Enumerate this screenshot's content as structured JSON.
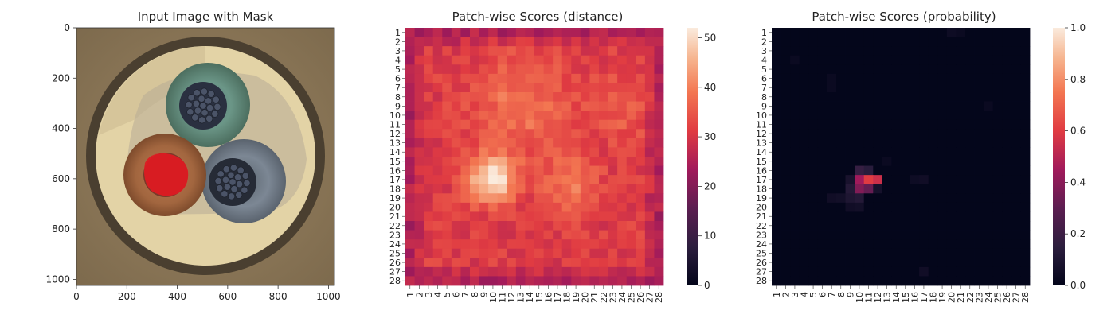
{
  "figure": {
    "panels": [
      {
        "title": "Input Image with Mask"
      },
      {
        "title": "Patch-wise Scores (distance)"
      },
      {
        "title": "Patch-wise Scores (probability)"
      }
    ]
  },
  "chart_data": [
    {
      "type": "image",
      "title": "Input Image with Mask",
      "xticks": [
        0,
        200,
        400,
        600,
        800,
        1000
      ],
      "yticks": [
        0,
        200,
        400,
        600,
        800,
        1000
      ],
      "xlim": [
        0,
        1024
      ],
      "ylim": [
        1024,
        0
      ],
      "image": {
        "description_items": [
          "cable cross-section",
          "green wire",
          "blue wire",
          "brown wire with red mask overlay"
        ],
        "colors": {
          "background": "#8a7556",
          "jacket": "#e6d7ac",
          "green": "#5e8a78",
          "blue": "#6f7a86",
          "brown": "#a36a45",
          "mask": "#e01a22"
        }
      }
    },
    {
      "type": "heatmap",
      "title": "Patch-wise Scores (distance)",
      "rows": 28,
      "cols": 28,
      "xticklabels": [
        "1",
        "2",
        "3",
        "4",
        "5",
        "6",
        "7",
        "8",
        "9",
        "10",
        "11",
        "12",
        "13",
        "14",
        "15",
        "16",
        "17",
        "18",
        "19",
        "20",
        "21",
        "22",
        "23",
        "24",
        "25",
        "26",
        "27",
        "28"
      ],
      "yticklabels": [
        "1",
        "2",
        "3",
        "4",
        "5",
        "6",
        "7",
        "8",
        "9",
        "10",
        "11",
        "12",
        "13",
        "14",
        "15",
        "16",
        "17",
        "18",
        "19",
        "20",
        "21",
        "22",
        "23",
        "24",
        "25",
        "26",
        "27",
        "28"
      ],
      "colorbar_ticks": [
        0,
        10,
        20,
        30,
        40,
        50
      ],
      "vmin": 0,
      "vmax": 52,
      "colormap": "rocket",
      "field": {
        "base": 31,
        "hotspots": [
          {
            "row": 17,
            "col": 10,
            "amp": 21,
            "sigma": 1.8
          },
          {
            "row": 17.5,
            "col": 18.5,
            "amp": 9,
            "sigma": 2.0
          },
          {
            "row": 9,
            "col": 13,
            "amp": 8,
            "sigma": 3.5
          },
          {
            "row": 9,
            "col": 24,
            "amp": 5,
            "sigma": 2.5
          }
        ],
        "edge_drop": 6,
        "noise": 3
      }
    },
    {
      "type": "heatmap",
      "title": "Patch-wise Scores (probability)",
      "rows": 28,
      "cols": 28,
      "xticklabels": [
        "1",
        "2",
        "3",
        "4",
        "5",
        "6",
        "7",
        "8",
        "9",
        "10",
        "11",
        "12",
        "13",
        "14",
        "15",
        "16",
        "17",
        "18",
        "19",
        "20",
        "21",
        "22",
        "23",
        "24",
        "25",
        "26",
        "27",
        "28"
      ],
      "yticklabels": [
        "1",
        "2",
        "3",
        "4",
        "5",
        "6",
        "7",
        "8",
        "9",
        "10",
        "11",
        "12",
        "13",
        "14",
        "15",
        "16",
        "17",
        "18",
        "19",
        "20",
        "21",
        "22",
        "23",
        "24",
        "25",
        "26",
        "27",
        "28"
      ],
      "colorbar_ticks": [
        0.0,
        0.2,
        0.4,
        0.6,
        0.8,
        1.0
      ],
      "colorbar_ticklabels": [
        "0.0",
        "0.2",
        "0.4",
        "0.6",
        "0.8",
        "1.0"
      ],
      "vmin": 0,
      "vmax": 1,
      "colormap": "rocket",
      "cells": [
        {
          "row": 17,
          "col": 10,
          "value": 0.45
        },
        {
          "row": 17,
          "col": 11,
          "value": 0.6
        },
        {
          "row": 17,
          "col": 12,
          "value": 0.55
        },
        {
          "row": 18,
          "col": 10,
          "value": 0.38
        },
        {
          "row": 18,
          "col": 11,
          "value": 0.32
        },
        {
          "row": 16,
          "col": 10,
          "value": 0.18
        },
        {
          "row": 16,
          "col": 11,
          "value": 0.14
        },
        {
          "row": 18,
          "col": 9,
          "value": 0.12
        },
        {
          "row": 19,
          "col": 9,
          "value": 0.1
        },
        {
          "row": 19,
          "col": 10,
          "value": 0.12
        },
        {
          "row": 19,
          "col": 8,
          "value": 0.06
        },
        {
          "row": 19,
          "col": 7,
          "value": 0.05
        },
        {
          "row": 20,
          "col": 9,
          "value": 0.05
        },
        {
          "row": 20,
          "col": 10,
          "value": 0.06
        },
        {
          "row": 17,
          "col": 9,
          "value": 0.08
        },
        {
          "row": 18,
          "col": 12,
          "value": 0.07
        },
        {
          "row": 17,
          "col": 16,
          "value": 0.04
        },
        {
          "row": 17,
          "col": 17,
          "value": 0.05
        },
        {
          "row": 27,
          "col": 17,
          "value": 0.05
        },
        {
          "row": 1,
          "col": 20,
          "value": 0.04
        },
        {
          "row": 1,
          "col": 21,
          "value": 0.03
        },
        {
          "row": 4,
          "col": 3,
          "value": 0.03
        },
        {
          "row": 6,
          "col": 7,
          "value": 0.03
        },
        {
          "row": 7,
          "col": 7,
          "value": 0.03
        },
        {
          "row": 9,
          "col": 24,
          "value": 0.03
        },
        {
          "row": 15,
          "col": 13,
          "value": 0.03
        }
      ]
    }
  ]
}
